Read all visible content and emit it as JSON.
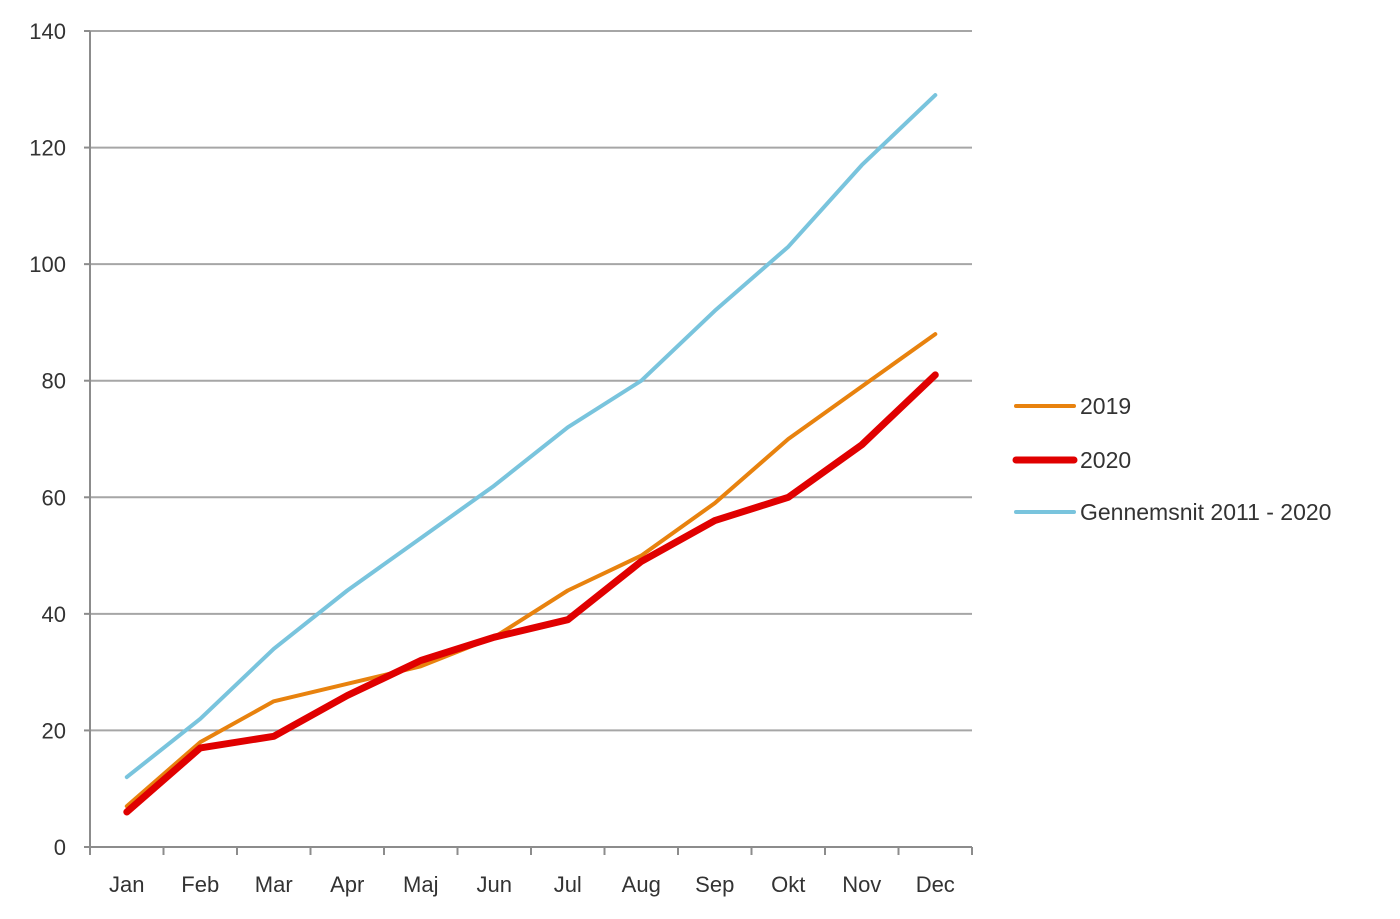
{
  "chart_data": {
    "type": "line",
    "categories": [
      "Jan",
      "Feb",
      "Mar",
      "Apr",
      "Maj",
      "Jun",
      "Jul",
      "Aug",
      "Sep",
      "Okt",
      "Nov",
      "Dec"
    ],
    "series": [
      {
        "name": "2019",
        "color": "#e8820e",
        "values": [
          7,
          18,
          25,
          28,
          31,
          36,
          44,
          50,
          59,
          70,
          79,
          88
        ]
      },
      {
        "name": "2020",
        "color": "#e00000",
        "values": [
          6,
          17,
          19,
          26,
          32,
          36,
          39,
          49,
          56,
          60,
          69,
          81
        ]
      },
      {
        "name": "Gennemsnit 2011 - 2020",
        "color": "#79c4dd",
        "values": [
          12,
          22,
          34,
          44,
          53,
          62,
          72,
          80,
          92,
          103,
          117,
          129
        ]
      }
    ],
    "y_ticks": [
      0,
      20,
      40,
      60,
      80,
      100,
      120,
      140
    ],
    "ylim": [
      0,
      140
    ],
    "grid": "horizontal",
    "legend_position": "right"
  }
}
